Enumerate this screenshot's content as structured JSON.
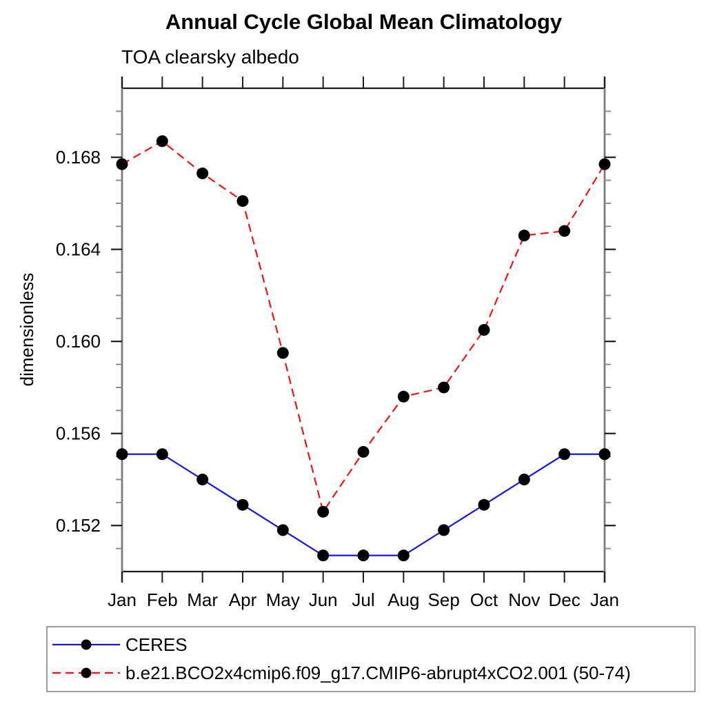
{
  "page": {
    "background": "#ffffff"
  },
  "chart_data": {
    "type": "line",
    "title": "Annual Cycle Global Mean Climatology",
    "subtitle": "TOA clearsky albedo",
    "xlabel": "",
    "ylabel": "dimensionless",
    "categories": [
      "Jan",
      "Feb",
      "Mar",
      "Apr",
      "May",
      "Jun",
      "Jul",
      "Aug",
      "Sep",
      "Oct",
      "Nov",
      "Dec",
      "Jan"
    ],
    "ylim": [
      0.15,
      0.171
    ],
    "y_major_ticks": [
      0.152,
      0.156,
      0.16,
      0.164,
      0.168
    ],
    "y_minor_step": 0.001,
    "grid": false,
    "legend_position": "bottom-left-box",
    "series": [
      {
        "name": "CERES",
        "color": "#1414e6",
        "style": "solid",
        "marker": "filled-circle",
        "marker_color": "#000000",
        "values": [
          0.1551,
          0.1551,
          0.154,
          0.1529,
          0.1518,
          0.1507,
          0.1507,
          0.1507,
          0.1518,
          0.1529,
          0.154,
          0.1551,
          0.1551
        ]
      },
      {
        "name": "b.e21.BCO2x4cmip6.f09_g17.CMIP6-abrupt4xCO2.001 (50-74)",
        "color": "#f51111",
        "style": "dashed",
        "marker": "filled-circle",
        "marker_color": "#000000",
        "values": [
          0.1677,
          0.1687,
          0.1673,
          0.1661,
          0.1595,
          0.1526,
          0.1552,
          0.1576,
          0.158,
          0.1605,
          0.1646,
          0.1648,
          0.1677
        ]
      }
    ]
  }
}
